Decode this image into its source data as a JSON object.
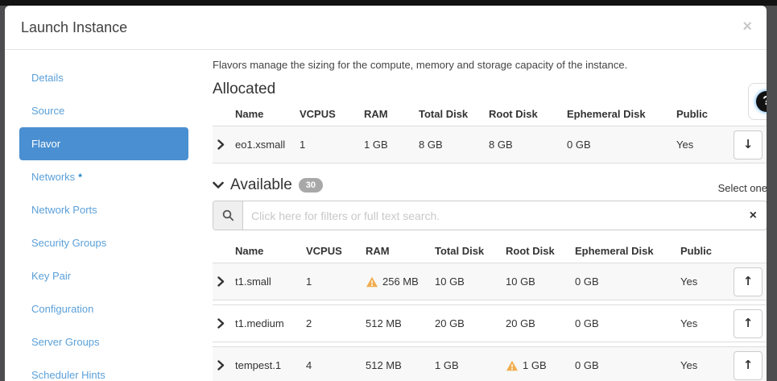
{
  "colors": {
    "accent_blue": "#4a8fd1",
    "link_blue": "#5ba0d9",
    "warning_orange": "#f0ad4e",
    "backdrop_gray": "#4d4d4f"
  },
  "modal": {
    "title": "Launch Instance",
    "close_glyph": "×"
  },
  "help_button": {
    "glyph": "?"
  },
  "sidebar": {
    "items": [
      {
        "label": "Details",
        "active": false,
        "required": false
      },
      {
        "label": "Source",
        "active": false,
        "required": false
      },
      {
        "label": "Flavor",
        "active": true,
        "required": false
      },
      {
        "label": "Networks",
        "active": false,
        "required": true
      },
      {
        "label": "Network Ports",
        "active": false,
        "required": false
      },
      {
        "label": "Security Groups",
        "active": false,
        "required": false
      },
      {
        "label": "Key Pair",
        "active": false,
        "required": false
      },
      {
        "label": "Configuration",
        "active": false,
        "required": false
      },
      {
        "label": "Server Groups",
        "active": false,
        "required": false
      },
      {
        "label": "Scheduler Hints",
        "active": false,
        "required": false
      }
    ]
  },
  "content": {
    "description": "Flavors manage the sizing for the compute, memory and storage capacity of the instance.",
    "allocated": {
      "heading": "Allocated",
      "columns": [
        "Name",
        "VCPUS",
        "RAM",
        "Total Disk",
        "Root Disk",
        "Ephemeral Disk",
        "Public"
      ],
      "rows": [
        {
          "name": "eo1.xsmall",
          "vcpus": "1",
          "ram": "1 GB",
          "ram_warning": false,
          "total_disk": "8 GB",
          "root_disk": "8 GB",
          "root_warning": false,
          "ephemeral_disk": "0 GB",
          "public": "Yes",
          "action": "move-down",
          "arrow": "↓"
        }
      ]
    },
    "available": {
      "heading": "Available",
      "count": "30",
      "select_hint": "Select one",
      "search": {
        "placeholder": "Click here for filters or full text search.",
        "clear_glyph": "×"
      },
      "columns": [
        "Name",
        "VCPUS",
        "RAM",
        "Total Disk",
        "Root Disk",
        "Ephemeral Disk",
        "Public"
      ],
      "rows": [
        {
          "name": "t1.small",
          "vcpus": "1",
          "ram": "256 MB",
          "ram_warning": true,
          "total_disk": "10 GB",
          "root_disk": "10 GB",
          "root_warning": false,
          "ephemeral_disk": "0 GB",
          "public": "Yes",
          "action": "move-up",
          "arrow": "↑"
        },
        {
          "name": "t1.medium",
          "vcpus": "2",
          "ram": "512 MB",
          "ram_warning": false,
          "total_disk": "20 GB",
          "root_disk": "20 GB",
          "root_warning": false,
          "ephemeral_disk": "0 GB",
          "public": "Yes",
          "action": "move-up",
          "arrow": "↑"
        },
        {
          "name": "tempest.1",
          "vcpus": "4",
          "ram": "512 MB",
          "ram_warning": false,
          "total_disk": "1 GB",
          "root_disk": "1 GB",
          "root_warning": true,
          "ephemeral_disk": "0 GB",
          "public": "Yes",
          "action": "move-up",
          "arrow": "↑"
        }
      ]
    }
  }
}
